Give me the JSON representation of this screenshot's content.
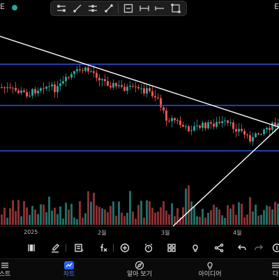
{
  "header": {
    "left_text": "E",
    "right_text": "E"
  },
  "drawing_toolbar": {
    "tools": [
      "trend-line-icon",
      "ray-icon",
      "extended-line-icon",
      "info-line-icon",
      "horizontal-line-icon",
      "horizontal-ray-icon",
      "rectangle-icon"
    ]
  },
  "x_axis": {
    "labels": [
      "2025",
      "2월",
      "3월",
      "4월"
    ]
  },
  "chart_tools": [
    "indicator-bars-icon",
    "brush-icon",
    "note-icon",
    "function-icon",
    "add-icon",
    "alarm-icon",
    "layout-grid-icon",
    "idea-bulb-icon",
    "share-icon",
    "undo-icon",
    "redo-icon",
    "compare-icon"
  ],
  "bottom_nav": {
    "items": [
      {
        "label": "스트",
        "icon": "watchlist-icon",
        "active": false
      },
      {
        "label": "차트",
        "icon": "chart-icon",
        "active": true
      },
      {
        "label": "알아 보기",
        "icon": "compass-icon",
        "active": false
      },
      {
        "label": "아이디어",
        "icon": "idea-icon",
        "active": false
      },
      {
        "label": "다",
        "icon": "menu-icon",
        "active": false
      }
    ]
  },
  "colors": {
    "up": "#26a69a",
    "down": "#ef5350",
    "level_line": "#2f54eb",
    "trend_line": "#ffffff",
    "accent": "#2962ff"
  },
  "chart_data": {
    "type": "candlestick",
    "x_tick_labels": [
      "2025",
      "2월",
      "3월",
      "4월"
    ],
    "horizontal_levels": [
      "upper",
      "middle",
      "lower"
    ],
    "trend_lines": [
      "descending",
      "ascending"
    ],
    "volume": true
  }
}
